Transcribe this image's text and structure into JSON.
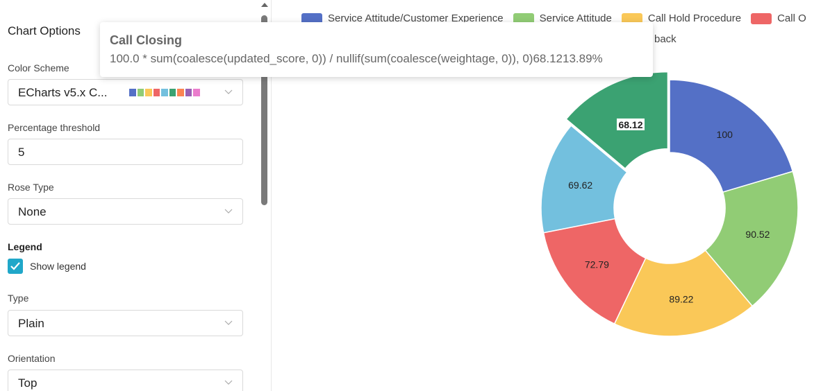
{
  "panel": {
    "title": "Chart Options",
    "color_scheme": {
      "label": "Color Scheme",
      "value": "ECharts v5.x C...",
      "swatches": [
        "#5470c6",
        "#91cc75",
        "#fac858",
        "#ee6666",
        "#73c0de",
        "#3ba272",
        "#fc8452",
        "#9a60b4",
        "#ea7ccc"
      ]
    },
    "percentage_threshold": {
      "label": "Percentage threshold",
      "value": "5"
    },
    "rose_type": {
      "label": "Rose Type",
      "value": "None"
    },
    "legend_section": {
      "label": "Legend",
      "show_legend_label": "Show legend",
      "show_legend_checked": true
    },
    "type": {
      "label": "Type",
      "value": "Plain"
    },
    "orientation": {
      "label": "Orientation",
      "value": "Top"
    }
  },
  "legend": {
    "items": [
      {
        "label": "Service Attitude/Customer Experience",
        "color": "#5470c6"
      },
      {
        "label": "Service Attitude",
        "color": "#91cc75"
      },
      {
        "label": "Call Hold Procedure",
        "color": "#fac858"
      },
      {
        "label": "Call O",
        "color": "#ee6666"
      }
    ],
    "row2_visible": "back"
  },
  "tooltip": {
    "title": "Call Closing",
    "body": "100.0 * sum(coalesce(updated_score, 0)) / nullif(sum(coalesce(weightage, 0)), 0)68.1213.89%"
  },
  "chart_data": {
    "type": "pie",
    "donut": true,
    "legend_position": "top",
    "slices": [
      {
        "value": 100,
        "label": "100",
        "color": "#5470c6"
      },
      {
        "value": 90.52,
        "label": "90.52",
        "color": "#91cc75"
      },
      {
        "value": 89.22,
        "label": "89.22",
        "color": "#fac858"
      },
      {
        "value": 72.79,
        "label": "72.79",
        "color": "#ee6666"
      },
      {
        "value": 69.62,
        "label": "69.62",
        "color": "#73c0de"
      },
      {
        "value": 68.12,
        "label": "68.12",
        "color": "#3ba272",
        "highlighted": true
      }
    ]
  }
}
